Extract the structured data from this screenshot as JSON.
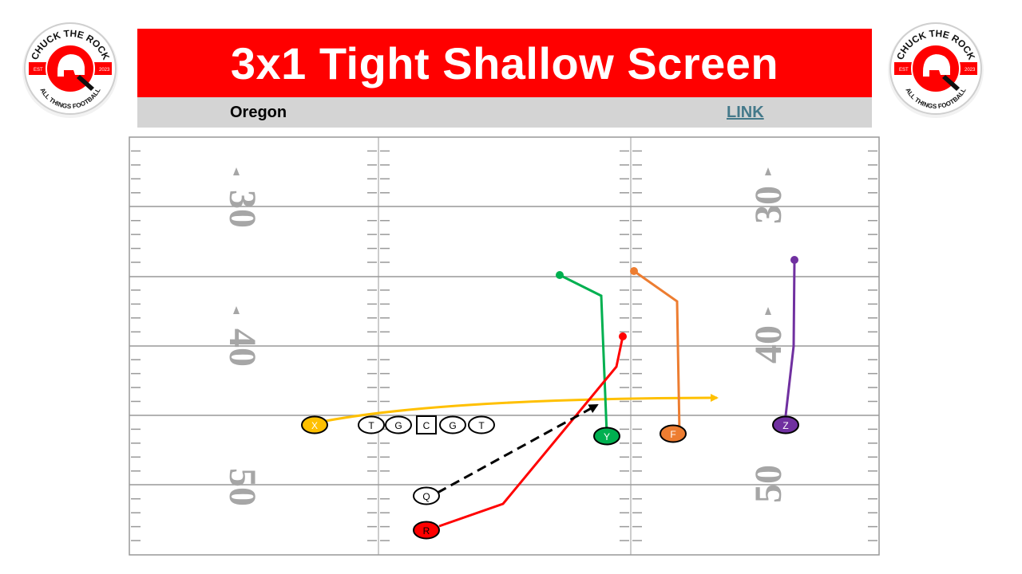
{
  "header": {
    "title": "3x1 Tight Shallow Screen",
    "team": "Oregon",
    "link_label": "LINK"
  },
  "logo": {
    "text_top": "CHUCK THE ROCK",
    "text_bottom": "ALL THINGS FOOTBALL",
    "est_left": "EST",
    "est_right": "2023"
  },
  "field": {
    "yard_numbers": [
      "30",
      "40",
      "50"
    ],
    "line_color": "#999999",
    "number_color": "#a6a6a6"
  },
  "players": [
    {
      "label": "X",
      "color": "#ffc000"
    },
    {
      "label": "T",
      "color": "#ffffff"
    },
    {
      "label": "G",
      "color": "#ffffff"
    },
    {
      "label": "C",
      "color": "#ffffff"
    },
    {
      "label": "G",
      "color": "#ffffff"
    },
    {
      "label": "T",
      "color": "#ffffff"
    },
    {
      "label": "Y",
      "color": "#00b050"
    },
    {
      "label": "F",
      "color": "#ed7d31"
    },
    {
      "label": "Z",
      "color": "#7030a0"
    },
    {
      "label": "Q",
      "color": "#ffffff"
    },
    {
      "label": "R",
      "color": "#ff0000"
    }
  ],
  "colors": {
    "title_bg": "#ff0000",
    "subbar_bg": "#d4d4d4",
    "x_route": "#ffc000",
    "y_route": "#00b050",
    "f_route": "#ed7d31",
    "z_route": "#7030a0",
    "r_route": "#ff0000",
    "pass": "#000000"
  }
}
